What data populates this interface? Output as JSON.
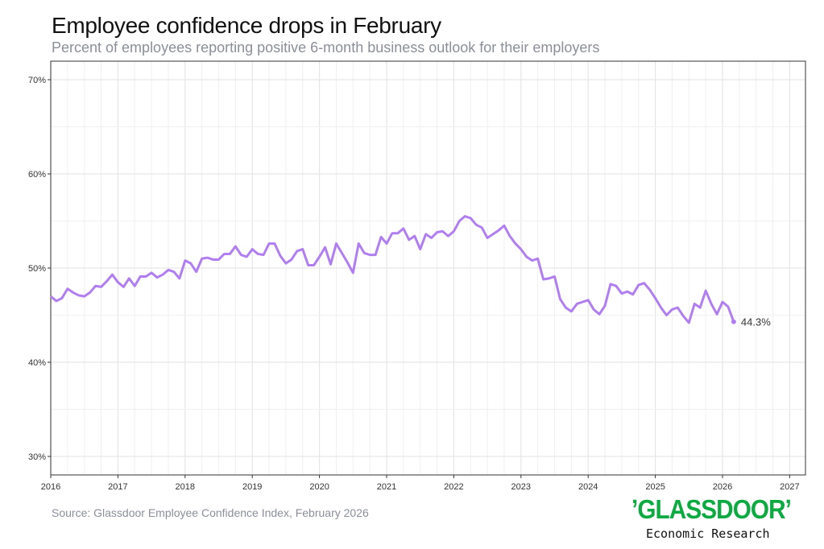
{
  "chart_data": {
    "type": "line",
    "title": "Employee confidence drops in February",
    "subtitle": "Percent of employees reporting positive 6-month business outlook for their employers",
    "source": "Source: Glassdoor Employee Confidence Index, February 2026",
    "xlabel": "",
    "ylabel": "",
    "xlim": [
      2016,
      2027
    ],
    "ylim": [
      28.2,
      72
    ],
    "x_ticks": [
      "2016",
      "2017",
      "2018",
      "2019",
      "2020",
      "2021",
      "2022",
      "2023",
      "2024",
      "2025",
      "2026",
      "2027"
    ],
    "y_ticks": [
      {
        "v": 30,
        "label": "30%"
      },
      {
        "v": 40,
        "label": "40%"
      },
      {
        "v": 50,
        "label": "50%"
      },
      {
        "v": 60,
        "label": "60%"
      },
      {
        "v": 70,
        "label": "70%"
      }
    ],
    "grid": true,
    "series": [
      {
        "name": "Employee confidence",
        "color": "#b07ef0",
        "start": "2016-01",
        "frequency": "monthly",
        "values": [
          47.0,
          46.5,
          46.8,
          47.8,
          47.4,
          47.1,
          47.0,
          47.4,
          48.1,
          48.0,
          48.6,
          49.3,
          48.5,
          48.0,
          48.9,
          48.1,
          49.1,
          49.1,
          49.5,
          49.0,
          49.3,
          49.8,
          49.6,
          48.9,
          50.8,
          50.5,
          49.6,
          51.0,
          51.1,
          50.9,
          50.9,
          51.5,
          51.5,
          52.3,
          51.4,
          51.2,
          52.0,
          51.5,
          51.4,
          52.6,
          52.6,
          51.3,
          50.5,
          50.9,
          51.8,
          52.0,
          50.3,
          50.3,
          51.2,
          52.2,
          50.4,
          52.6,
          51.6,
          50.6,
          49.5,
          52.6,
          51.6,
          51.4,
          51.4,
          53.3,
          52.6,
          53.7,
          53.7,
          54.2,
          53.0,
          53.4,
          52.0,
          53.6,
          53.2,
          53.8,
          53.9,
          53.4,
          53.9,
          55.0,
          55.5,
          55.3,
          54.6,
          54.3,
          53.2,
          53.6,
          54.0,
          54.5,
          53.4,
          52.6,
          52.0,
          51.2,
          50.8,
          51.0,
          48.8,
          48.9,
          49.1,
          46.7,
          45.8,
          45.4,
          46.2,
          46.4,
          46.6,
          45.6,
          45.1,
          46.0,
          48.3,
          48.1,
          47.3,
          47.5,
          47.2,
          48.2,
          48.4,
          47.7,
          46.8,
          45.8,
          45.0,
          45.6,
          45.8,
          44.9,
          44.2,
          46.2,
          45.8,
          47.6,
          46.2,
          45.1,
          46.4,
          45.9,
          44.3
        ]
      }
    ],
    "annotations": [
      {
        "text": "44.3%",
        "target": "last-point"
      }
    ]
  },
  "logo": {
    "brand": "'GLASSDOOR'",
    "tagline": "Economic Research",
    "color": "#0caa41"
  }
}
